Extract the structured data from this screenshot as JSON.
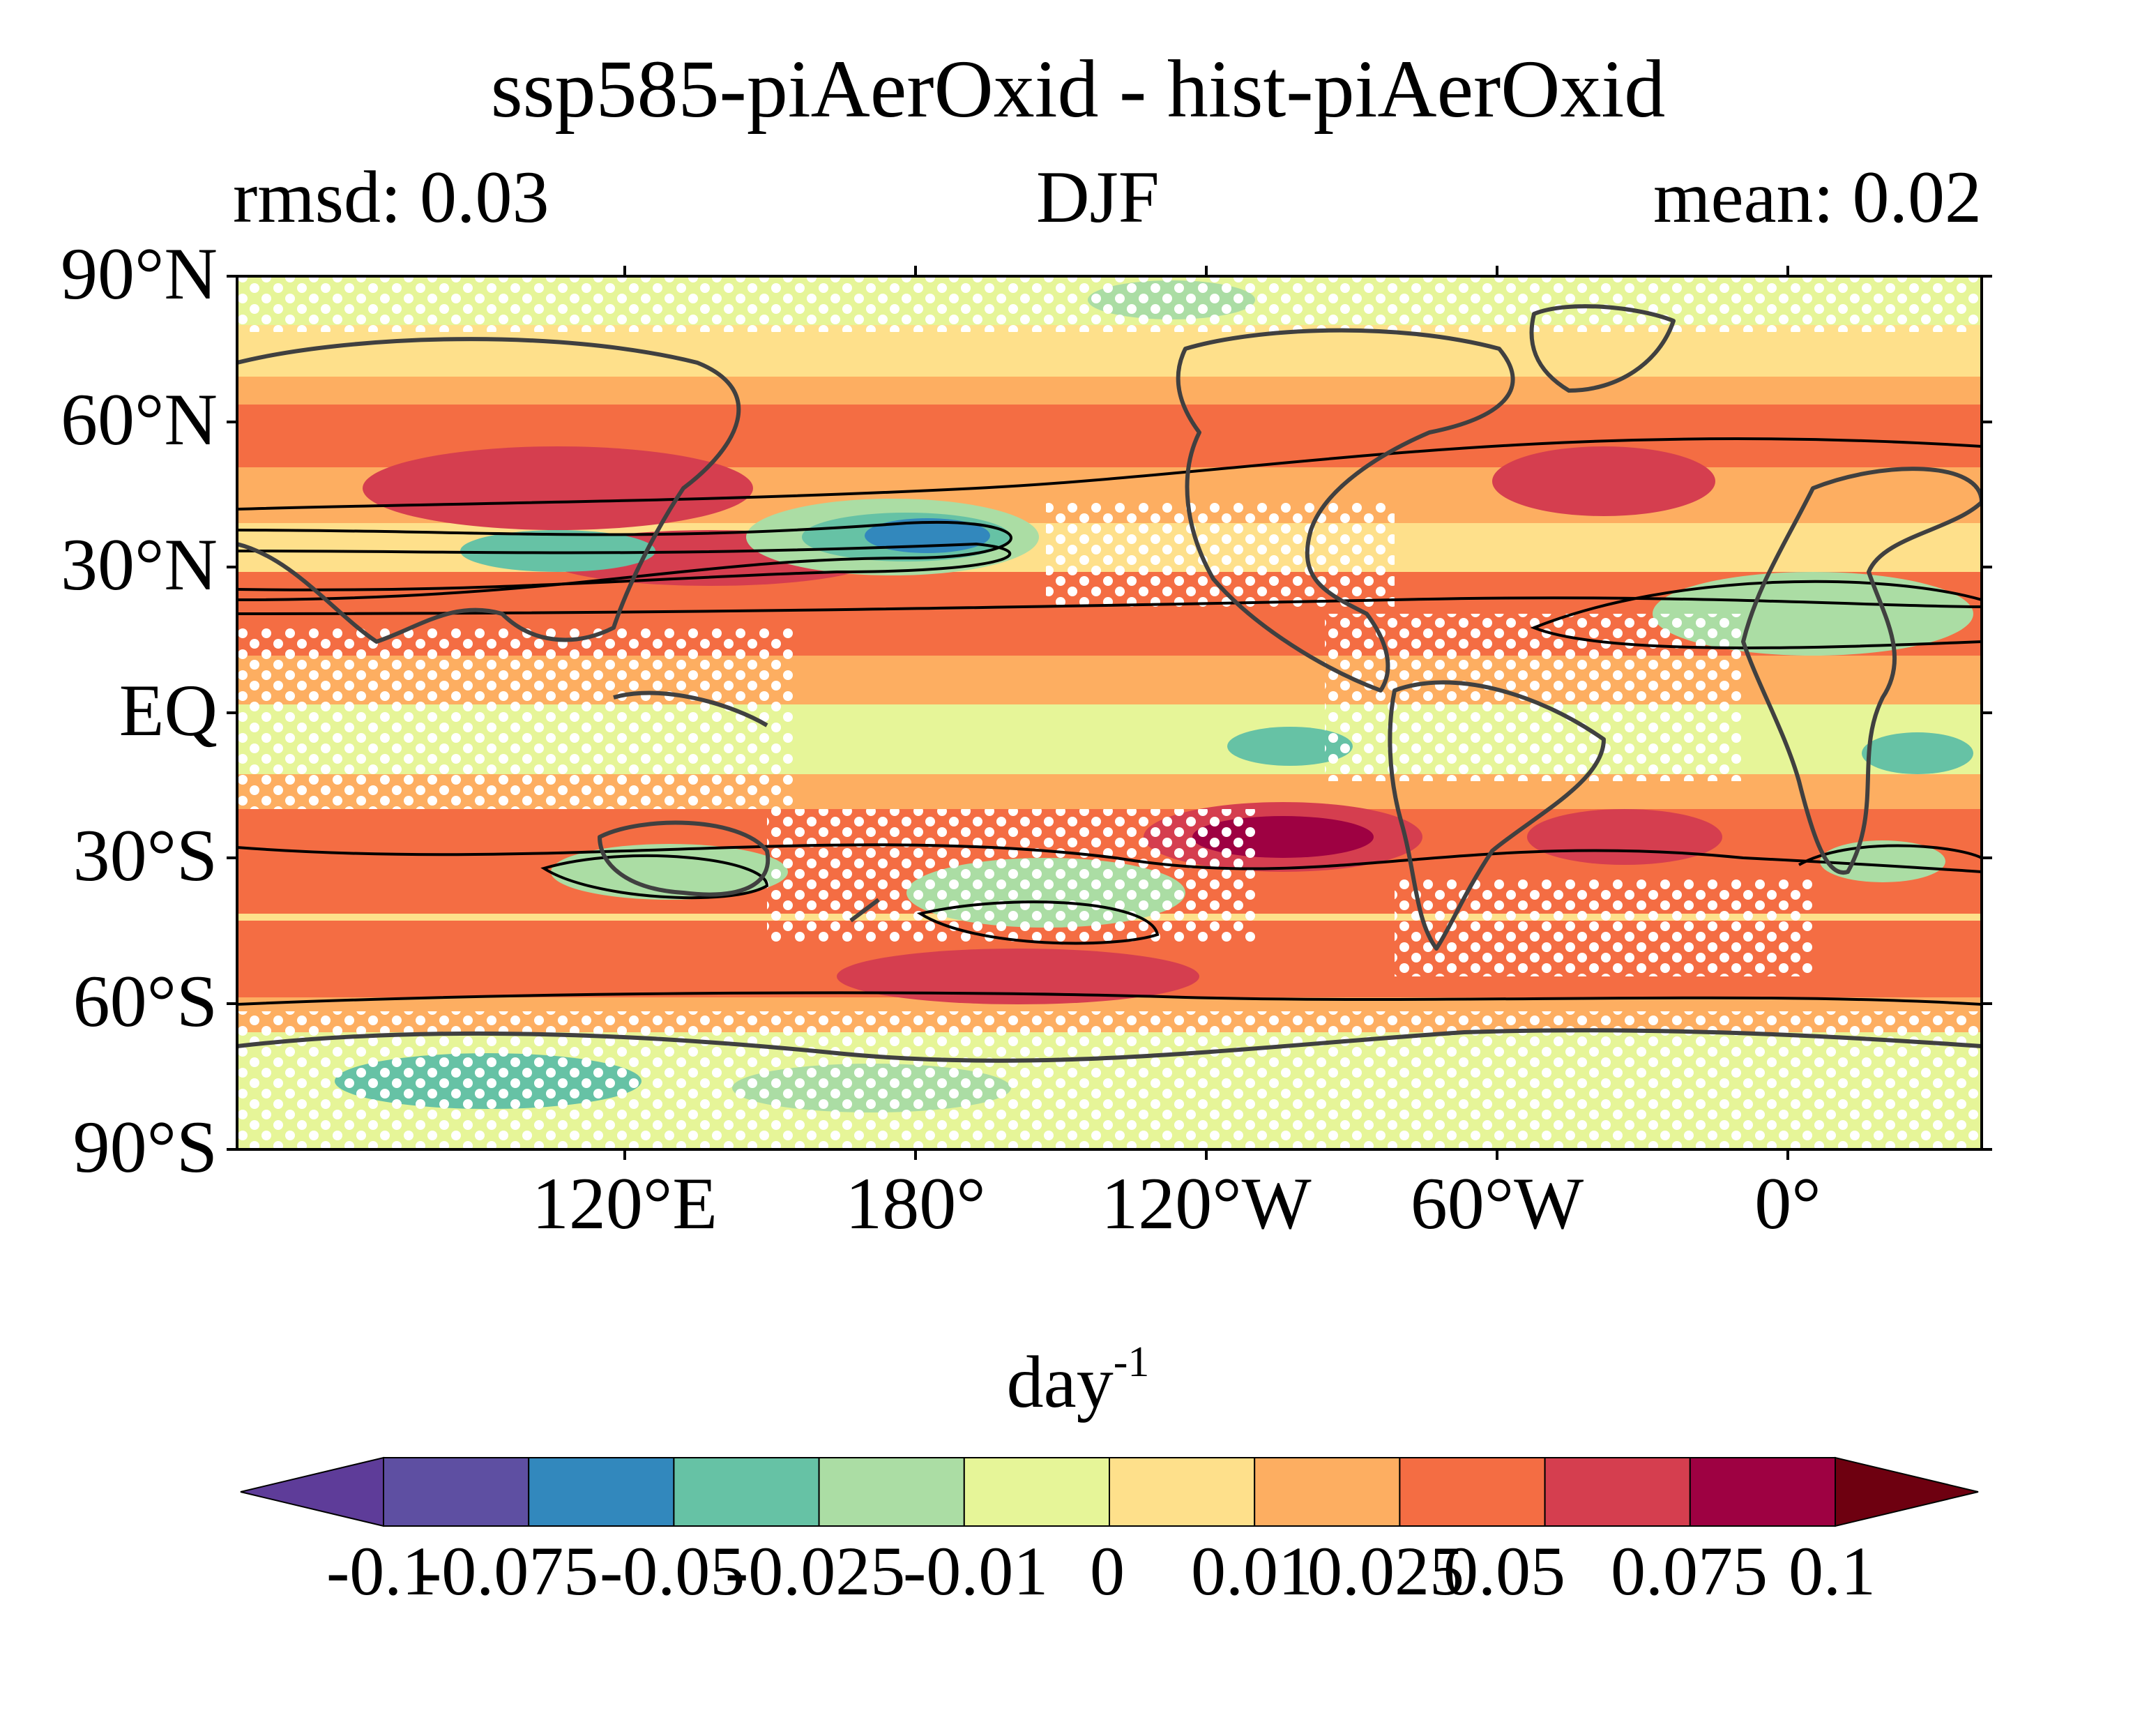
{
  "title": "ssp585-piAerOxid - hist-piAerOxid",
  "left_stat": "rmsd: 0.03",
  "season": "DJF",
  "right_stat": "mean: 0.02",
  "units_base": "day",
  "units_exp": "-1",
  "lat_labels": [
    "90°N",
    "60°N",
    "30°N",
    "EQ",
    "30°S",
    "60°S",
    "90°S"
  ],
  "lon_labels": [
    "120°E",
    "180°",
    "120°W",
    "60°W",
    "0°"
  ],
  "colorbar": {
    "levels": [
      "-0.1",
      "-0.075",
      "-0.05",
      "-0.025",
      "-0.01",
      "0",
      "0.01",
      "0.025",
      "0.05",
      "0.075",
      "0.1"
    ],
    "colors": [
      "#5e3c99",
      "#5e4fa2",
      "#3288bd",
      "#66c2a5",
      "#abdda4",
      "#e6f598",
      "#fee08b",
      "#fdae61",
      "#f46d43",
      "#d53e4f",
      "#9e0142",
      "#6e0010"
    ]
  },
  "map": {
    "region": "Global",
    "land_color": "#404040",
    "contour_color": "#000000",
    "stipple_color": "#ffffff"
  }
}
